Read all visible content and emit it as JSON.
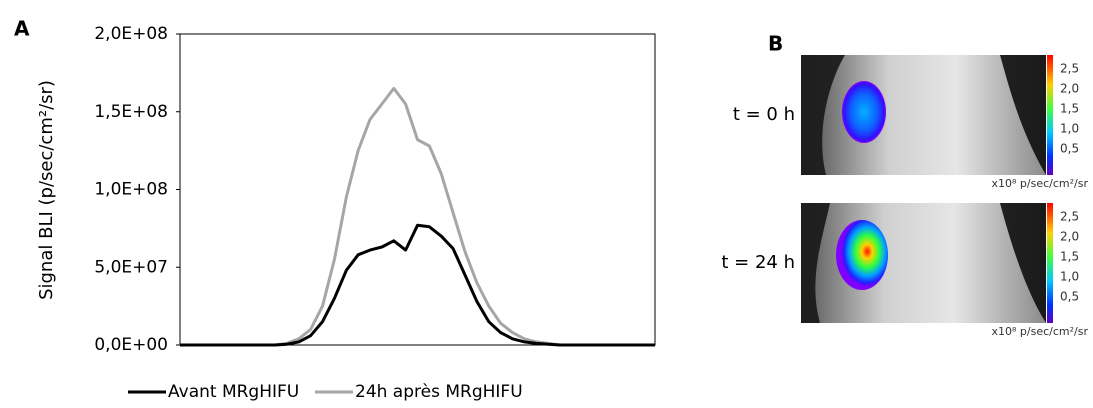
{
  "panel_a_label": "A",
  "chart_data": {
    "type": "line",
    "y_label": "Signal BLI (p/sec/cm²/sr)",
    "categories": [
      null,
      null,
      null,
      null,
      null,
      null,
      null,
      null,
      null,
      null,
      null,
      null,
      null,
      null,
      null,
      null,
      null,
      null,
      null,
      null,
      null,
      null,
      null,
      null,
      null,
      null,
      null,
      null,
      null,
      null,
      null,
      null,
      null,
      null,
      null,
      null,
      null,
      null,
      null,
      null,
      null
    ],
    "series": [
      {
        "name": "Avant MRgHIFU",
        "color": "#000000",
        "values": [
          0,
          0,
          0,
          0,
          0,
          0,
          0,
          0,
          0,
          500000,
          2000000,
          6000000,
          15000000,
          30000000,
          48000000,
          58000000,
          61000000,
          63000000,
          67000000,
          61000000,
          77000000,
          76000000,
          70000000,
          62000000,
          45000000,
          28000000,
          15000000,
          8000000,
          4000000,
          2000000,
          1000000,
          500000,
          0,
          0,
          0,
          0,
          0,
          0,
          0,
          0,
          0
        ]
      },
      {
        "name": "24h après MRgHIFU",
        "color": "#a6a6a6",
        "values": [
          0,
          0,
          0,
          0,
          0,
          0,
          0,
          0,
          0,
          1000000,
          4000000,
          10000000,
          25000000,
          55000000,
          95000000,
          125000000,
          145000000,
          155000000,
          165000000,
          155000000,
          132000000,
          128000000,
          110000000,
          85000000,
          60000000,
          40000000,
          25000000,
          14000000,
          8000000,
          4000000,
          2000000,
          1000000,
          0,
          0,
          0,
          0,
          0,
          0,
          0,
          0,
          0
        ]
      }
    ],
    "ylim": [
      0,
      200000000
    ],
    "yticks": [
      {
        "value": 0,
        "label": "0,0E+00"
      },
      {
        "value": 50000000,
        "label": "5,0E+07"
      },
      {
        "value": 100000000,
        "label": "1,0E+08"
      },
      {
        "value": 150000000,
        "label": "1,5E+08"
      },
      {
        "value": 200000000,
        "label": "2,0E+08"
      }
    ],
    "grid": false
  },
  "panel_b": {
    "label": "B",
    "images": [
      {
        "caption": "t = 0 h",
        "colorbar_ticks": [
          "2,5",
          "2,0",
          "1,5",
          "1,0",
          "0,5"
        ],
        "unit": "x10⁸ p/sec/cm²/sr"
      },
      {
        "caption": "t = 24 h",
        "colorbar_ticks": [
          "2,5",
          "2,0",
          "1,5",
          "1,0",
          "0,5"
        ],
        "unit": "x10⁸ p/sec/cm²/sr"
      }
    ]
  }
}
